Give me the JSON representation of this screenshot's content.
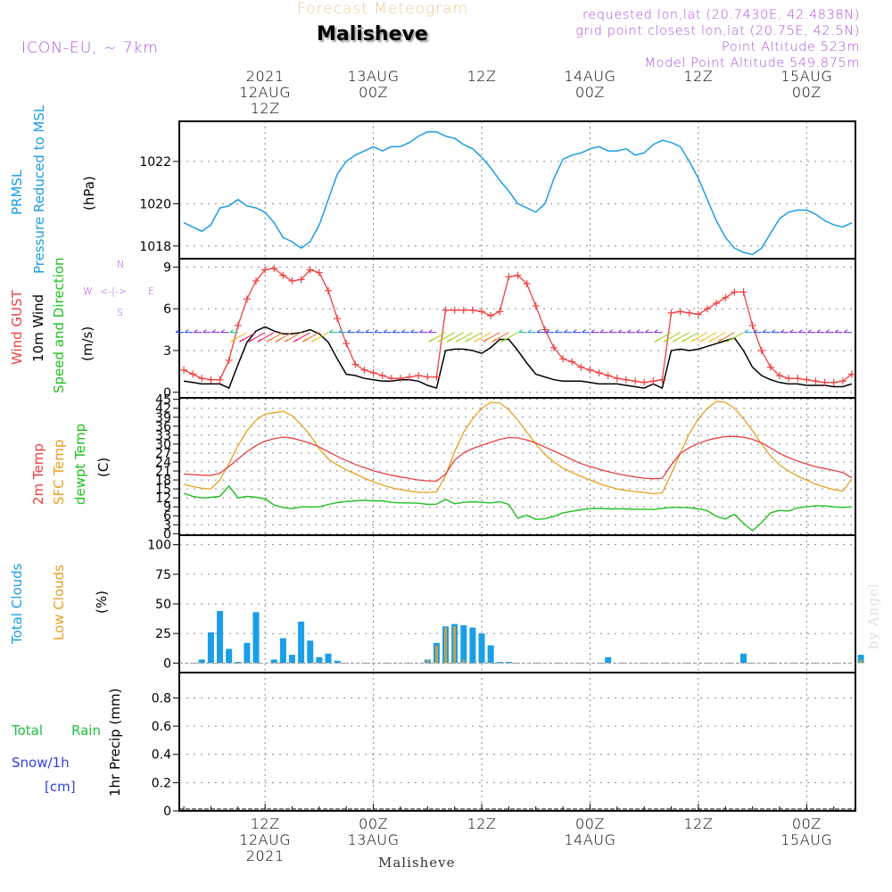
{
  "header": {
    "title_top": "Forecast Meteogram",
    "location": "Malisheve",
    "model": "ICON-EU, ~ 7km",
    "requested": "requested lon,lat (20.7430E, 42.4838N)",
    "grid_point": "grid point closest lon,lat (20.75E, 42.5N)",
    "point_alt": "Point Altitude 523m",
    "model_alt": "Model Point Altitude 549.875m",
    "footer_location": "Malisheve",
    "watermark": "by Angel"
  },
  "time_axis": {
    "top_labels": [
      {
        "hour": "12Z",
        "date": "12AUG",
        "year": "2021"
      },
      {
        "hour": "00Z",
        "date": "13AUG",
        "year": ""
      },
      {
        "hour": "12Z",
        "date": "",
        "year": ""
      },
      {
        "hour": "00Z",
        "date": "14AUG",
        "year": ""
      },
      {
        "hour": "12Z",
        "date": "",
        "year": ""
      },
      {
        "hour": "00Z",
        "date": "15AUG",
        "year": ""
      }
    ],
    "bottom_labels": [
      {
        "hour": "12Z",
        "date": "12AUG",
        "year": "2021"
      },
      {
        "hour": "00Z",
        "date": "13AUG",
        "year": ""
      },
      {
        "hour": "12Z",
        "date": "",
        "year": ""
      },
      {
        "hour": "00Z",
        "date": "14AUG",
        "year": ""
      },
      {
        "hour": "12Z",
        "date": "",
        "year": ""
      },
      {
        "hour": "00Z",
        "date": "15AUG",
        "year": ""
      }
    ]
  },
  "panel_labels": {
    "pressure": {
      "l1": "PRMSL",
      "l2": "Pressure Reduced to MSL",
      "unit": "(hPa)"
    },
    "wind": {
      "l1": "Wind GUST",
      "l2": "10m Wind",
      "l3": "Speed and Direction",
      "unit": "(m/s)"
    },
    "temp": {
      "l1": "2m Temp",
      "l2": "SFC Temp",
      "l3": "dewpt Temp",
      "unit": "(C)"
    },
    "clouds": {
      "l1": "Total Clouds",
      "l2": "Low Clouds",
      "unit": "(%)"
    },
    "precip": {
      "l1": "Total",
      "l1b": "Rain",
      "l2": "Snow/1h",
      "l3": "[cm]",
      "unit": "1hr Precip (mm)"
    },
    "compass": {
      "n": "N",
      "s": "S",
      "w": "W",
      "e": "E",
      "arrows": "<-|->"
    }
  },
  "colors": {
    "pressure": "#1a9ee8",
    "gust": "#f04040",
    "wind": "#000000",
    "t2m": "#e84040",
    "sfc": "#e8a020",
    "dew": "#20c020",
    "total_cloud": "#1a9ee8",
    "low_cloud": "#c8a040",
    "header_meta": "#b050e0",
    "title_top": "#f0c890",
    "rain": "#20c040",
    "snow": "#3040e0",
    "cloud_label": "#e8a020"
  },
  "chart_data": [
    {
      "type": "line",
      "title": "PRMSL Pressure Reduced to MSL",
      "ylabel": "(hPa)",
      "ylim": [
        1017.4,
        1023.9
      ],
      "yticks": [
        1018,
        1020,
        1022
      ],
      "x_hours": [
        -9,
        -8,
        -7,
        -6,
        -5,
        -4,
        -3,
        -2,
        -1,
        0,
        1,
        2,
        3,
        4,
        5,
        6,
        7,
        8,
        9,
        10,
        11,
        12,
        13,
        14,
        15,
        16,
        17,
        18,
        19,
        20,
        21,
        22,
        23,
        24,
        25,
        26,
        27,
        28,
        29,
        30,
        31,
        32,
        33,
        34,
        35,
        36,
        37,
        38,
        39,
        40,
        41,
        42,
        43,
        44,
        45,
        46,
        47,
        48,
        49,
        50,
        51,
        52,
        53,
        54,
        55,
        56,
        57,
        58,
        59,
        60,
        61,
        62,
        63,
        64,
        65
      ],
      "series": [
        {
          "name": "PRMSL",
          "values": [
            1019.1,
            1018.9,
            1018.7,
            1019.0,
            1019.8,
            1019.9,
            1020.2,
            1019.9,
            1019.8,
            1019.6,
            1019.1,
            1018.4,
            1018.2,
            1017.9,
            1018.2,
            1019.0,
            1020.2,
            1021.4,
            1022.0,
            1022.3,
            1022.5,
            1022.7,
            1022.5,
            1022.7,
            1022.7,
            1022.9,
            1023.2,
            1023.4,
            1023.4,
            1023.2,
            1023.1,
            1022.8,
            1022.6,
            1022.2,
            1021.7,
            1021.1,
            1020.6,
            1020.0,
            1019.8,
            1019.6,
            1020.0,
            1021.2,
            1022.1,
            1022.3,
            1022.4,
            1022.6,
            1022.7,
            1022.5,
            1022.5,
            1022.6,
            1022.3,
            1022.4,
            1022.8,
            1023.0,
            1022.9,
            1022.7,
            1022.0,
            1021.2,
            1020.2,
            1019.2,
            1018.4,
            1017.9,
            1017.7,
            1017.6,
            1017.9,
            1018.6,
            1019.3,
            1019.6,
            1019.7,
            1019.7,
            1019.5,
            1019.2,
            1019.0,
            1018.9,
            1019.1
          ]
        }
      ]
    },
    {
      "type": "line",
      "title": "Wind GUST / 10m Wind Speed and Direction",
      "ylabel": "(m/s)",
      "ylim": [
        -0.4,
        9.6
      ],
      "yticks": [
        0,
        3,
        6,
        9
      ],
      "x_hours": [
        -9,
        -8,
        -7,
        -6,
        -5,
        -4,
        -3,
        -2,
        -1,
        0,
        1,
        2,
        3,
        4,
        5,
        6,
        7,
        8,
        9,
        10,
        11,
        12,
        13,
        14,
        15,
        16,
        17,
        18,
        19,
        20,
        21,
        22,
        23,
        24,
        25,
        26,
        27,
        28,
        29,
        30,
        31,
        32,
        33,
        34,
        35,
        36,
        37,
        38,
        39,
        40,
        41,
        42,
        43,
        44,
        45,
        46,
        47,
        48,
        49,
        50,
        51,
        52,
        53,
        54,
        55,
        56,
        57,
        58,
        59,
        60,
        61,
        62,
        63,
        64,
        65
      ],
      "series": [
        {
          "name": "Wind GUST",
          "values": [
            1.6,
            1.3,
            1.0,
            0.9,
            0.9,
            2.3,
            4.8,
            6.7,
            8.0,
            8.8,
            8.9,
            8.4,
            8.0,
            8.1,
            8.8,
            8.6,
            7.3,
            5.3,
            3.5,
            2.0,
            1.6,
            1.4,
            1.2,
            1.0,
            1.0,
            1.1,
            1.2,
            1.1,
            1.1,
            5.9,
            5.9,
            5.9,
            5.9,
            5.8,
            5.5,
            5.8,
            8.3,
            8.4,
            7.8,
            6.2,
            4.5,
            3.2,
            2.4,
            2.2,
            1.8,
            1.6,
            1.4,
            1.2,
            1.0,
            0.9,
            0.8,
            0.7,
            0.8,
            0.9,
            5.7,
            5.8,
            5.7,
            5.6,
            6.0,
            6.4,
            6.8,
            7.2,
            7.2,
            4.8,
            3.0,
            1.8,
            1.2,
            1.0,
            1.0,
            0.9,
            0.8,
            0.7,
            0.7,
            0.8,
            1.3
          ]
        },
        {
          "name": "10m Wind",
          "values": [
            0.8,
            0.7,
            0.6,
            0.6,
            0.6,
            0.3,
            2.0,
            3.6,
            4.4,
            4.7,
            4.4,
            4.2,
            4.2,
            4.3,
            4.5,
            4.2,
            3.6,
            2.4,
            1.3,
            1.2,
            1.0,
            0.9,
            0.8,
            0.8,
            0.9,
            0.9,
            0.8,
            0.5,
            0.3,
            3.0,
            3.1,
            3.1,
            3.0,
            2.8,
            3.2,
            3.8,
            3.8,
            3.0,
            2.1,
            1.3,
            1.1,
            0.9,
            0.8,
            0.8,
            0.8,
            0.7,
            0.6,
            0.6,
            0.6,
            0.5,
            0.4,
            0.3,
            0.6,
            0.3,
            3.0,
            3.1,
            3.0,
            3.1,
            3.3,
            3.5,
            3.7,
            3.9,
            3.0,
            1.8,
            1.2,
            0.9,
            0.7,
            0.6,
            0.6,
            0.5,
            0.5,
            0.5,
            0.4,
            0.4,
            0.6
          ]
        }
      ]
    },
    {
      "type": "line",
      "title": "2m Temp / SFC Temp / dewpt Temp",
      "ylabel": "(C)",
      "ylim": [
        -0.5,
        45.5
      ],
      "yticks": [
        0,
        3,
        6,
        9,
        12,
        15,
        18,
        21,
        24,
        27,
        30,
        33,
        36,
        39,
        42,
        45
      ],
      "x_hours": [
        -9,
        -8,
        -7,
        -6,
        -5,
        -4,
        -3,
        -2,
        -1,
        0,
        1,
        2,
        3,
        4,
        5,
        6,
        7,
        8,
        9,
        10,
        11,
        12,
        13,
        14,
        15,
        16,
        17,
        18,
        19,
        20,
        21,
        22,
        23,
        24,
        25,
        26,
        27,
        28,
        29,
        30,
        31,
        32,
        33,
        34,
        35,
        36,
        37,
        38,
        39,
        40,
        41,
        42,
        43,
        44,
        45,
        46,
        47,
        48,
        49,
        50,
        51,
        52,
        53,
        54,
        55,
        56,
        57,
        58,
        59,
        60,
        61,
        62,
        63,
        64,
        65
      ],
      "series": [
        {
          "name": "2m Temp",
          "values": [
            20,
            19.8,
            19.6,
            19.5,
            20.3,
            22.5,
            25.0,
            27.5,
            29.5,
            31.0,
            31.8,
            32.4,
            32.0,
            31.2,
            30.3,
            29.0,
            27.5,
            25.9,
            24.5,
            23.2,
            22.1,
            21.1,
            20.3,
            19.6,
            19.0,
            18.5,
            18.0,
            17.7,
            17.6,
            20,
            24.6,
            27.1,
            28.5,
            29.6,
            30.6,
            31.6,
            32.2,
            32.1,
            31.4,
            30.4,
            29.0,
            27.7,
            26.3,
            24.8,
            23.5,
            22.5,
            21.6,
            20.8,
            20.1,
            19.5,
            19.0,
            18.6,
            18.4,
            18.6,
            23,
            26.9,
            28.8,
            30.2,
            31.3,
            32.0,
            32.5,
            32.6,
            32.3,
            31.6,
            30.4,
            28.7,
            26.9,
            25.5,
            24.3,
            23.3,
            22.4,
            21.8,
            21.2,
            20.5,
            18.7
          ]
        },
        {
          "name": "SFC Temp",
          "values": [
            16.5,
            15.8,
            15.2,
            15.0,
            18.0,
            23.5,
            29.5,
            34.5,
            38.0,
            40.0,
            40.5,
            41.0,
            39.5,
            36.5,
            33.0,
            28.5,
            25.0,
            23.0,
            21.4,
            20.0,
            18.6,
            17.4,
            16.3,
            15.4,
            14.8,
            14.3,
            13.9,
            13.8,
            14.0,
            19.5,
            27.5,
            34.0,
            38.5,
            42.0,
            44.0,
            43.8,
            41.5,
            38.0,
            34.0,
            30.0,
            26.5,
            24.0,
            22.0,
            20.5,
            19.2,
            18.0,
            16.8,
            15.8,
            15.0,
            14.5,
            14.1,
            13.8,
            13.4,
            13.7,
            20,
            27.0,
            33.5,
            38.5,
            42.0,
            44.3,
            44.0,
            42.0,
            38.5,
            34.5,
            30.0,
            26.0,
            23.0,
            21.0,
            19.3,
            17.9,
            16.6,
            15.6,
            14.8,
            14.3,
            18.2
          ]
        },
        {
          "name": "dewpt Temp",
          "values": [
            13.5,
            12.5,
            12.0,
            12.2,
            12.5,
            16.0,
            12.0,
            12.5,
            12.2,
            11.7,
            9.6,
            8.8,
            8.4,
            9.0,
            8.9,
            9.0,
            9.8,
            10.4,
            10.8,
            11.0,
            11.2,
            11.0,
            11.0,
            10.5,
            10.3,
            10.3,
            10.2,
            9.8,
            9.9,
            11.5,
            10.0,
            10.5,
            10.7,
            10.5,
            10.3,
            10.7,
            9.8,
            5.2,
            6.2,
            4.8,
            5.0,
            5.8,
            7.0,
            7.5,
            8.0,
            8.4,
            8.5,
            8.3,
            8.3,
            8.3,
            8.2,
            8.2,
            8.1,
            8.5,
            8.8,
            8.8,
            8.7,
            8.3,
            7.7,
            5.8,
            4.9,
            6.5,
            3.5,
            1.0,
            3.7,
            7.0,
            7.8,
            7.6,
            8.7,
            9.0,
            9.4,
            9.3,
            9.0,
            8.8,
            9.0
          ]
        }
      ]
    },
    {
      "type": "bar",
      "title": "Total Clouds / Low Clouds",
      "ylabel": "(%)",
      "ylim": [
        -8,
        108
      ],
      "yticks": [
        0,
        25,
        50,
        75,
        100
      ],
      "x_hours": [
        -7,
        -6,
        -5,
        -4,
        -3,
        -2,
        -1,
        0,
        1,
        2,
        3,
        4,
        5,
        6,
        7,
        8,
        18,
        19,
        20,
        21,
        22,
        23,
        24,
        25,
        26,
        27,
        38,
        53,
        66
      ],
      "series": [
        {
          "name": "Total Clouds",
          "values": [
            3,
            26,
            44,
            12,
            1,
            17,
            43,
            0,
            3,
            21,
            7,
            35,
            19,
            5,
            8,
            2,
            3,
            17,
            31,
            33,
            32,
            30,
            25,
            15,
            1,
            1,
            5,
            8,
            7
          ]
        },
        {
          "name": "Low Clouds",
          "values": [
            0,
            0,
            0,
            0,
            0,
            0,
            0,
            0,
            0,
            0,
            0,
            0,
            0,
            0,
            0,
            0,
            3,
            15,
            30,
            31,
            3,
            0,
            0,
            0,
            0,
            0,
            0,
            0,
            3
          ]
        }
      ]
    },
    {
      "type": "bar",
      "title": "1hr Precip",
      "ylabel": "1hr Precip (mm)",
      "ylim": [
        0,
        0.98
      ],
      "yticks": [
        0,
        0.2,
        0.4,
        0.6,
        0.8
      ],
      "x_hours": [],
      "series": [
        {
          "name": "Total Rain",
          "values": []
        },
        {
          "name": "Snow/1h",
          "values": []
        }
      ]
    }
  ]
}
